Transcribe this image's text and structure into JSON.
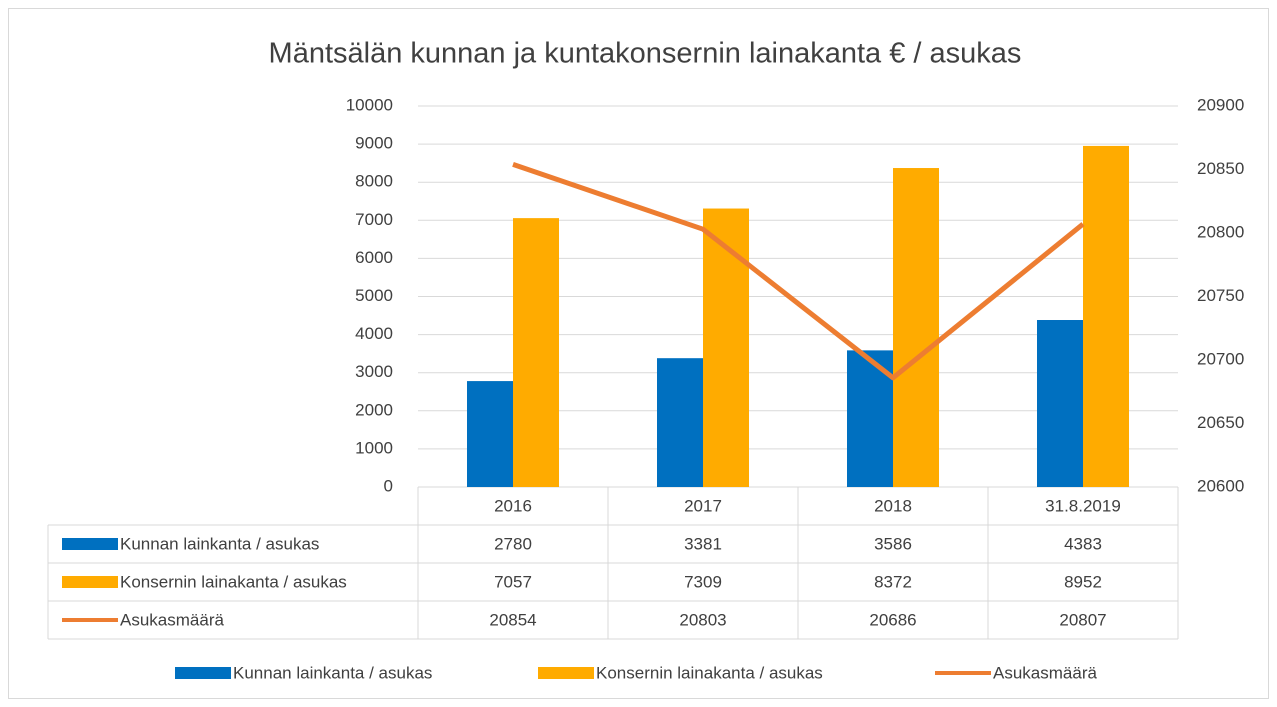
{
  "chart_data": {
    "type": "bar",
    "title": "Mäntsälän kunnan ja kuntakonsernin lainakanta € / asukas",
    "categories": [
      "2016",
      "2017",
      "2018",
      "31.8.2019"
    ],
    "series": [
      {
        "name": "Kunnan lainkanta / asukas",
        "type": "bar",
        "color": "#0070c0",
        "values": [
          2780,
          3381,
          3586,
          4383
        ]
      },
      {
        "name": "Konsernin lainakanta / asukas",
        "type": "bar",
        "color": "#ffab00",
        "values": [
          7057,
          7309,
          8372,
          8952
        ]
      },
      {
        "name": "Asukasmäärä",
        "type": "line",
        "axis": "y2",
        "color": "#ed7d31",
        "values": [
          20854,
          20803,
          20686,
          20807
        ]
      }
    ],
    "ylim": [
      0,
      10000
    ],
    "yticks": [
      0,
      1000,
      2000,
      3000,
      4000,
      5000,
      6000,
      7000,
      8000,
      9000,
      10000
    ],
    "y2lim": [
      20600,
      20900
    ],
    "y2ticks": [
      20600,
      20650,
      20700,
      20750,
      20800,
      20850,
      20900
    ],
    "grid": true,
    "data_table": true,
    "legend": "bottom"
  }
}
